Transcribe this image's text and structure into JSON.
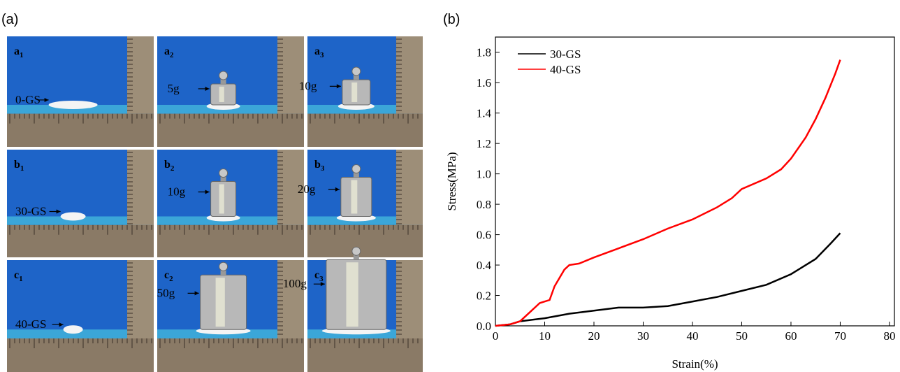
{
  "panels": {
    "a": "(a)",
    "b": "(b)"
  },
  "photos": [
    {
      "label": {
        "letter": "a",
        "sub": "1"
      },
      "text": "0-GS"
    },
    {
      "label": {
        "letter": "a",
        "sub": "2"
      },
      "text": "5g"
    },
    {
      "label": {
        "letter": "a",
        "sub": "3"
      },
      "text": "10g"
    },
    {
      "label": {
        "letter": "b",
        "sub": "1"
      },
      "text": "30-GS"
    },
    {
      "label": {
        "letter": "b",
        "sub": "2"
      },
      "text": "10g"
    },
    {
      "label": {
        "letter": "b",
        "sub": "3"
      },
      "text": "20g"
    },
    {
      "label": {
        "letter": "c",
        "sub": "1"
      },
      "text": "40-GS"
    },
    {
      "label": {
        "letter": "c",
        "sub": "2"
      },
      "text": "50g"
    },
    {
      "label": {
        "letter": "c",
        "sub": "3"
      },
      "text": "100g"
    }
  ],
  "chart_data": {
    "type": "line",
    "x_label": "Strain(%)",
    "y_label": "Stress(MPa)",
    "xlim": [
      0,
      81
    ],
    "xticks": [
      0,
      10,
      20,
      30,
      40,
      50,
      60,
      70,
      80
    ],
    "ylim": [
      0,
      1.9
    ],
    "yticks": [
      {
        "value": 0,
        "label": "0.0"
      },
      0.2,
      0.4,
      0.6,
      0.8,
      {
        "value": 1,
        "label": "1.0"
      },
      1.2,
      1.4,
      1.6,
      1.8
    ],
    "legend": "upper left",
    "series": [
      {
        "name": "30-GS",
        "color": "#000000",
        "x": [
          0,
          3,
          5,
          10,
          15,
          20,
          25,
          30,
          35,
          40,
          45,
          50,
          55,
          60,
          65,
          68,
          70
        ],
        "values": [
          0,
          0.01,
          0.03,
          0.05,
          0.08,
          0.1,
          0.12,
          0.12,
          0.13,
          0.16,
          0.19,
          0.23,
          0.27,
          0.34,
          0.44,
          0.54,
          0.61
        ]
      },
      {
        "name": "40-GS",
        "color": "#ff0000",
        "x": [
          0,
          3,
          5,
          7,
          9,
          10,
          11,
          12,
          14,
          15,
          17,
          20,
          25,
          30,
          35,
          40,
          45,
          48,
          50,
          55,
          58,
          60,
          63,
          65,
          67,
          69,
          70
        ],
        "values": [
          0,
          0.01,
          0.03,
          0.09,
          0.15,
          0.16,
          0.17,
          0.26,
          0.37,
          0.4,
          0.41,
          0.45,
          0.51,
          0.57,
          0.64,
          0.7,
          0.78,
          0.84,
          0.9,
          0.97,
          1.03,
          1.1,
          1.24,
          1.36,
          1.5,
          1.66,
          1.75
        ]
      }
    ]
  }
}
